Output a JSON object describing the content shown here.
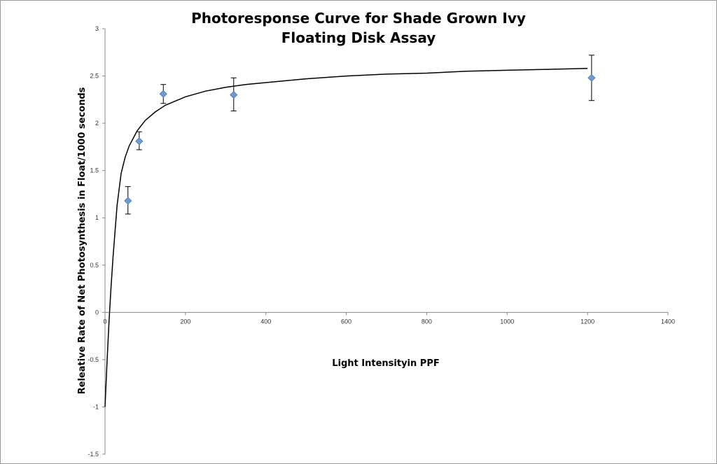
{
  "chart_data": {
    "type": "scatter",
    "title_lines": [
      "Photoresponse Curve for Shade Grown Ivy",
      "Floating Disk Assay"
    ],
    "xlabel": "Light Intensityin PPF",
    "ylabel": "Releative Rate of Net Photosynthesis in Float/1000 seconds",
    "xlim": [
      0,
      1400
    ],
    "ylim": [
      -1.5,
      3
    ],
    "x_ticks": [
      0,
      200,
      400,
      600,
      800,
      1000,
      1200,
      1400
    ],
    "y_ticks": [
      -1.5,
      -1,
      -0.5,
      0,
      0.5,
      1,
      1.5,
      2,
      2.5,
      3
    ],
    "y_tick_labels": [
      "-1.5",
      "-1",
      "-0.5",
      "0",
      "0.5",
      "1",
      "1.5",
      "2",
      "2.5",
      "3"
    ],
    "grid": false,
    "legend": "none",
    "marker_color": "#6f9bd1",
    "series": [
      {
        "points": [
          {
            "x": 57,
            "y": 1.18,
            "err_low": 0.14,
            "err_high": 0.15
          },
          {
            "x": 85,
            "y": 1.81,
            "err_low": 0.09,
            "err_high": 0.1
          },
          {
            "x": 145,
            "y": 2.31,
            "err_low": 0.1,
            "err_high": 0.1
          },
          {
            "x": 320,
            "y": 2.3,
            "err_low": 0.17,
            "err_high": 0.18
          },
          {
            "x": 1210,
            "y": 2.48,
            "err_low": 0.24,
            "err_high": 0.24
          }
        ]
      }
    ],
    "fit_curve": {
      "x": [
        0,
        5,
        10,
        15,
        20,
        30,
        40,
        50,
        60,
        80,
        100,
        125,
        150,
        200,
        250,
        300,
        350,
        400,
        500,
        600,
        700,
        800,
        900,
        1000,
        1100,
        1200
      ],
      "y": [
        -1.0,
        -0.52,
        -0.1,
        0.27,
        0.59,
        1.13,
        1.47,
        1.64,
        1.76,
        1.92,
        2.03,
        2.12,
        2.19,
        2.28,
        2.34,
        2.38,
        2.41,
        2.43,
        2.47,
        2.5,
        2.52,
        2.53,
        2.55,
        2.56,
        2.57,
        2.58
      ]
    }
  }
}
